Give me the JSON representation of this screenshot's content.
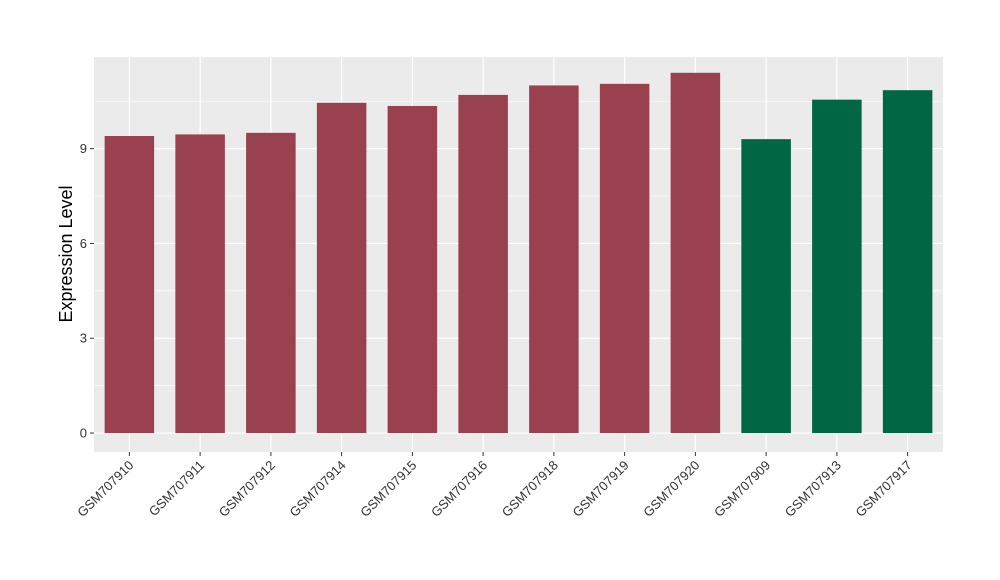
{
  "chart_data": {
    "type": "bar",
    "title": "",
    "xlabel": "",
    "ylabel": "Expression Level",
    "ylim": [
      -0.6,
      11.9
    ],
    "yticks": [
      0,
      3,
      6,
      9
    ],
    "grid": true,
    "background": "#EBEBEB",
    "gridline_color": "#FFFFFF",
    "tick_color": "#333333",
    "categories": [
      "GSM707910",
      "GSM707911",
      "GSM707912",
      "GSM707914",
      "GSM707915",
      "GSM707916",
      "GSM707918",
      "GSM707919",
      "GSM707920",
      "GSM707909",
      "GSM707913",
      "GSM707917"
    ],
    "values": [
      9.4,
      9.45,
      9.5,
      10.45,
      10.35,
      10.7,
      11.0,
      11.05,
      11.4,
      9.3,
      10.55,
      10.85
    ],
    "groups": [
      "a",
      "a",
      "a",
      "a",
      "a",
      "a",
      "a",
      "a",
      "a",
      "b",
      "b",
      "b"
    ],
    "group_colors": {
      "a": "#99414F",
      "b": "#006643"
    }
  }
}
